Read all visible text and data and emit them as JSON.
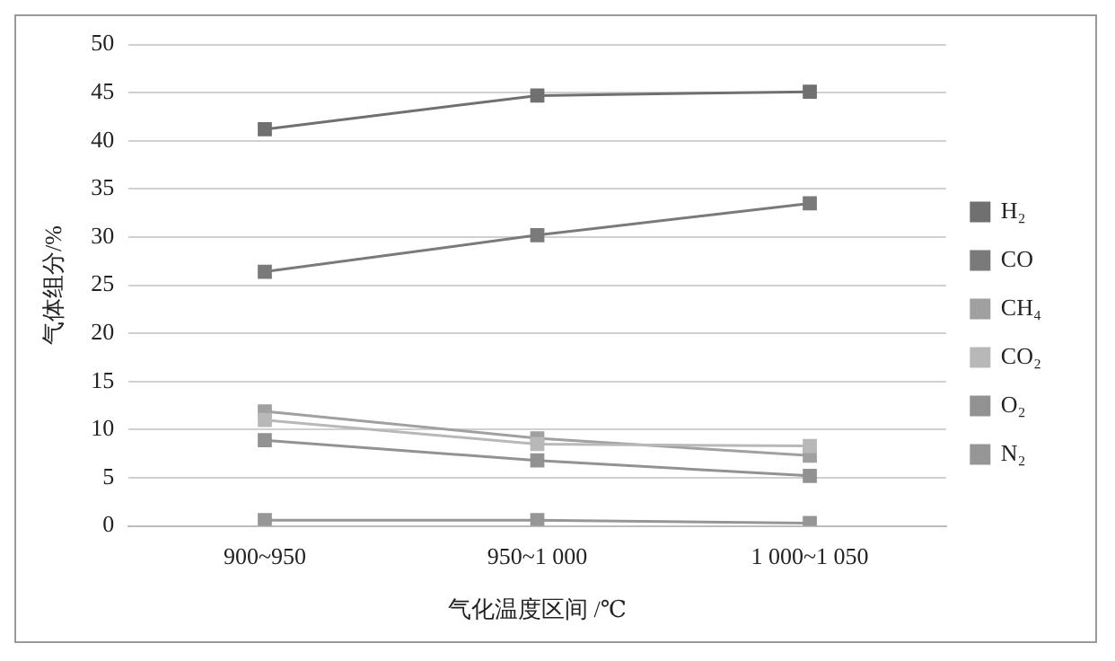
{
  "chart_data": {
    "type": "line",
    "xlabel": "气化温度区间 /℃",
    "ylabel": "气体组分/%",
    "categories": [
      "900~950",
      "950~1 000",
      "1 000~1 050"
    ],
    "series": [
      {
        "name": "H₂",
        "color": "#707070",
        "values": [
          41.2,
          44.7,
          45.1
        ]
      },
      {
        "name": "CO",
        "color": "#7a7a7a",
        "values": [
          26.4,
          30.2,
          33.5
        ]
      },
      {
        "name": "CH₄",
        "color": "#a0a0a0",
        "values": [
          11.9,
          9.1,
          7.3
        ]
      },
      {
        "name": "CO₂",
        "color": "#b8b8b8",
        "values": [
          11.0,
          8.5,
          8.3
        ]
      },
      {
        "name": "O₂",
        "color": "#929292",
        "values": [
          8.9,
          6.8,
          5.2
        ]
      },
      {
        "name": "N₂",
        "color": "#969696",
        "values": [
          0.6,
          0.6,
          0.3
        ]
      }
    ],
    "ylim": [
      0,
      50
    ],
    "yticks": [
      0,
      5,
      10,
      15,
      20,
      25,
      30,
      35,
      40,
      45,
      50
    ],
    "grid": "y",
    "legend": "right",
    "marker": "square",
    "line_style": "solid"
  }
}
